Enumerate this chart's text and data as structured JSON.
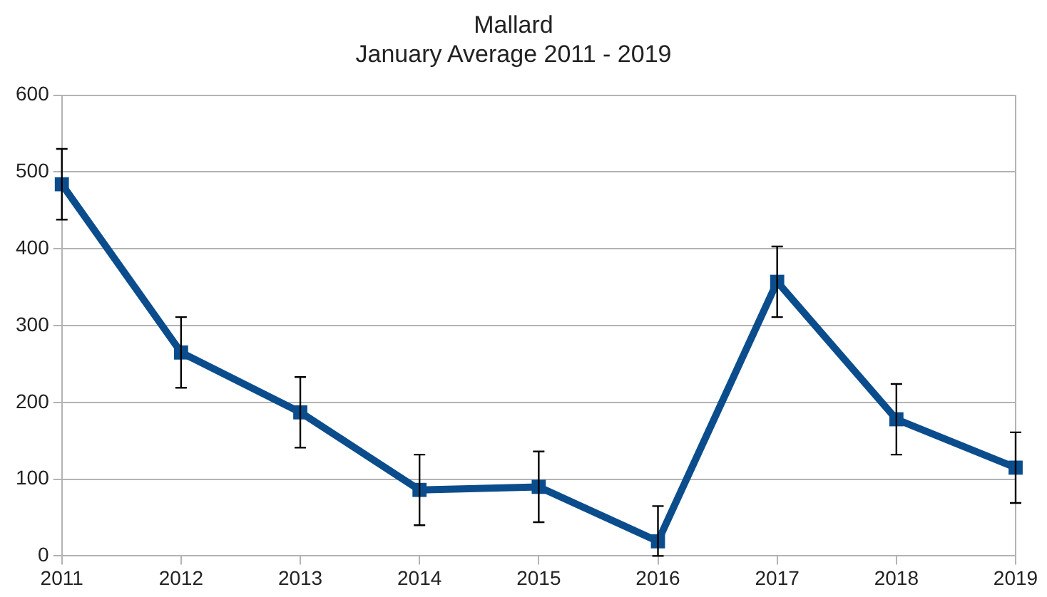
{
  "chart_data": {
    "type": "line",
    "title": "Mallard",
    "subtitle": "January Average 2011 - 2019",
    "categories": [
      "2011",
      "2012",
      "2013",
      "2014",
      "2015",
      "2016",
      "2017",
      "2018",
      "2019"
    ],
    "series": [
      {
        "color": "#0b4d8c",
        "values": [
          484,
          265,
          187,
          86,
          90,
          19,
          357,
          178,
          115
        ],
        "errors": [
          46,
          46,
          46,
          46,
          46,
          [
            0,
            65
          ],
          46,
          46,
          46
        ]
      }
    ],
    "ylim": [
      0,
      600
    ],
    "yticks": [
      0,
      100,
      200,
      300,
      400,
      500,
      600
    ],
    "grid": "y",
    "legend": false,
    "marker": "square",
    "line_style": "solid"
  }
}
